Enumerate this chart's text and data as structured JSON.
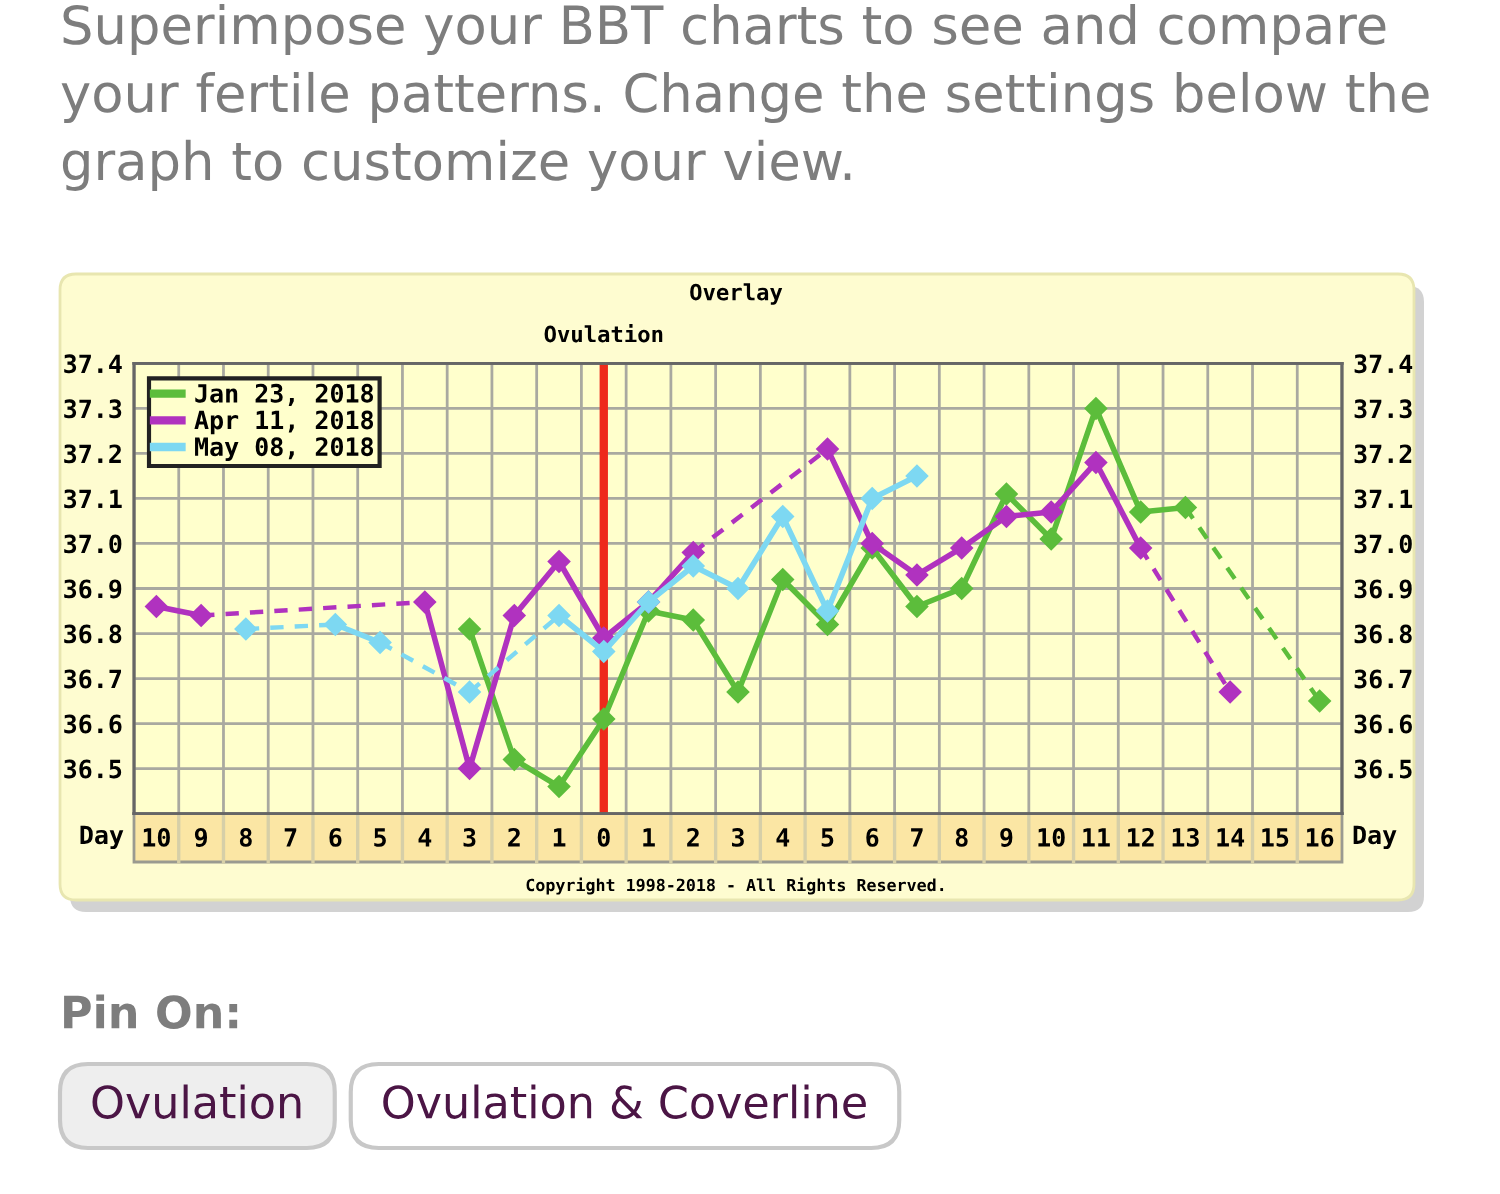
{
  "chart_data": {
    "type": "line",
    "title": "Overlay",
    "xlabel": "Day",
    "x": [
      -10,
      -9,
      -8,
      -7,
      -6,
      -5,
      -4,
      -3,
      -2,
      -1,
      0,
      1,
      2,
      3,
      4,
      5,
      6,
      7,
      8,
      9,
      10,
      11,
      12,
      13,
      14,
      15,
      16
    ],
    "xlim": [
      -10.5,
      16.5
    ],
    "xticks": [
      {
        "value": -10,
        "label": "10"
      },
      {
        "value": -9,
        "label": "9"
      },
      {
        "value": -8,
        "label": "8"
      },
      {
        "value": -7,
        "label": "7"
      },
      {
        "value": -6,
        "label": "6"
      },
      {
        "value": -5,
        "label": "5"
      },
      {
        "value": -4,
        "label": "4"
      },
      {
        "value": -3,
        "label": "3"
      },
      {
        "value": -2,
        "label": "2"
      },
      {
        "value": -1,
        "label": "1"
      },
      0,
      1,
      2,
      3,
      4,
      5,
      6,
      7,
      8,
      9,
      10,
      11,
      12,
      13,
      14,
      15,
      16
    ],
    "ylim": [
      36.4,
      37.4
    ],
    "yticks": [
      36.5,
      36.6,
      36.7,
      36.8,
      36.9,
      {
        "value": 37,
        "label": "37.0"
      },
      37.1,
      37.2,
      37.3,
      37.4
    ],
    "y2lim": [
      36.4,
      37.4
    ],
    "y2ticks": [
      36.5,
      36.6,
      36.7,
      36.8,
      36.9,
      {
        "value": 37,
        "label": "37.0"
      },
      37.1,
      37.2,
      37.3,
      37.4
    ],
    "series": [
      {
        "name": "Jan 23, 2018",
        "color": "#5cbd3b",
        "values": [
          null,
          null,
          null,
          null,
          null,
          null,
          null,
          36.81,
          36.52,
          36.46,
          36.61,
          36.85,
          36.83,
          36.67,
          36.92,
          36.82,
          36.99,
          36.86,
          36.9,
          37.11,
          37.01,
          37.3,
          37.07,
          37.08,
          null,
          null,
          36.65
        ]
      },
      {
        "name": "Apr 11, 2018",
        "color": "#b032bf",
        "values": [
          36.86,
          36.84,
          null,
          null,
          null,
          null,
          36.87,
          36.5,
          36.84,
          36.96,
          36.79,
          36.87,
          36.98,
          null,
          null,
          37.21,
          37.0,
          36.93,
          36.99,
          37.06,
          37.07,
          37.18,
          36.99,
          null,
          36.67,
          null,
          null
        ]
      },
      {
        "name": "May 08, 2018",
        "color": "#7dd8f2",
        "values": [
          null,
          null,
          36.81,
          null,
          36.82,
          36.78,
          null,
          36.67,
          null,
          36.84,
          36.76,
          36.87,
          36.95,
          36.9,
          37.06,
          36.85,
          37.1,
          37.15,
          null,
          null,
          null,
          null,
          null,
          null,
          null,
          null,
          null
        ]
      }
    ],
    "ref_lines": [
      {
        "axis": "x",
        "value": 0,
        "label": "Ovulation",
        "color": "#ee2a1b"
      }
    ],
    "annotations": [
      "Superimpose your BBT charts to see and compare your fertile patterns. Change the settings below the graph to customize your view.",
      "Copyright 1998-2018 - All Rights Reserved.",
      "Pin On:",
      "Ovulation",
      "Ovulation & Coverline"
    ],
    "grid": true,
    "legend": "top left",
    "marker": "diamond",
    "line_style": "solid"
  }
}
